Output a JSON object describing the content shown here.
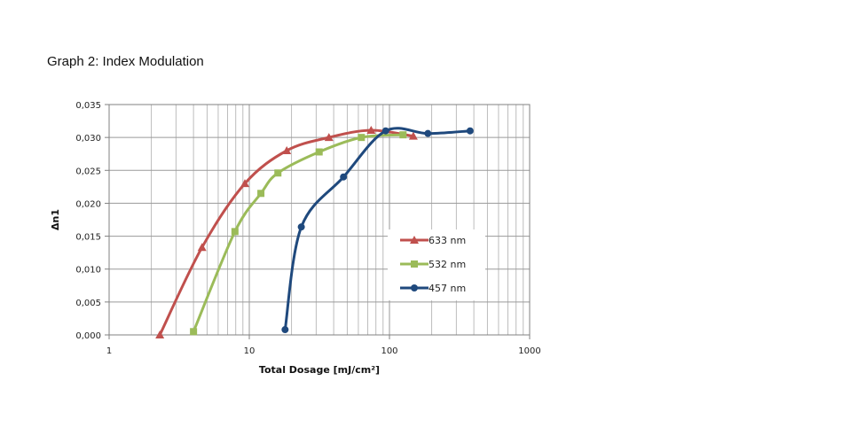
{
  "page": {
    "title": "Graph 2: Index Modulation"
  },
  "chart_data": {
    "type": "line",
    "xscale": "log",
    "xlabel": "Total Dosage [mJ/cm²]",
    "ylabel": "Δn1",
    "xlim": [
      1,
      1000
    ],
    "ylim": [
      0,
      0.035
    ],
    "grid": true,
    "legend_position": "inside-right",
    "x_ticks": [
      {
        "value": 1,
        "label": "1"
      },
      {
        "value": 10,
        "label": "10"
      },
      {
        "value": 100,
        "label": "100"
      },
      {
        "value": 1000,
        "label": "1000"
      }
    ],
    "y_ticks": [
      {
        "value": 0.0,
        "label": "0,000"
      },
      {
        "value": 0.005,
        "label": "0,005"
      },
      {
        "value": 0.01,
        "label": "0,010"
      },
      {
        "value": 0.015,
        "label": "0,015"
      },
      {
        "value": 0.02,
        "label": "0,020"
      },
      {
        "value": 0.025,
        "label": "0,025"
      },
      {
        "value": 0.03,
        "label": "0,030"
      },
      {
        "value": 0.035,
        "label": "0,035"
      }
    ],
    "series": [
      {
        "name": "633 nm",
        "color": "#c0504d",
        "marker": "triangle",
        "points": [
          [
            2.3,
            0.0
          ],
          [
            4.6,
            0.0133
          ],
          [
            9.3,
            0.023
          ],
          [
            18.5,
            0.028
          ],
          [
            37,
            0.03
          ],
          [
            74,
            0.0311
          ],
          [
            148,
            0.0302
          ]
        ]
      },
      {
        "name": "532 nm",
        "color": "#9bbb59",
        "marker": "square",
        "points": [
          [
            4.0,
            0.0005
          ],
          [
            7.9,
            0.0157
          ],
          [
            12.1,
            0.0215
          ],
          [
            16,
            0.0246
          ],
          [
            31.5,
            0.0278
          ],
          [
            63,
            0.03
          ],
          [
            125,
            0.0304
          ]
        ]
      },
      {
        "name": "457 nm",
        "color": "#1f497d",
        "marker": "circle",
        "points": [
          [
            18,
            0.0008
          ],
          [
            23.5,
            0.0164
          ],
          [
            47,
            0.024
          ],
          [
            94,
            0.031
          ],
          [
            188,
            0.0306
          ],
          [
            376,
            0.031
          ]
        ]
      }
    ]
  }
}
